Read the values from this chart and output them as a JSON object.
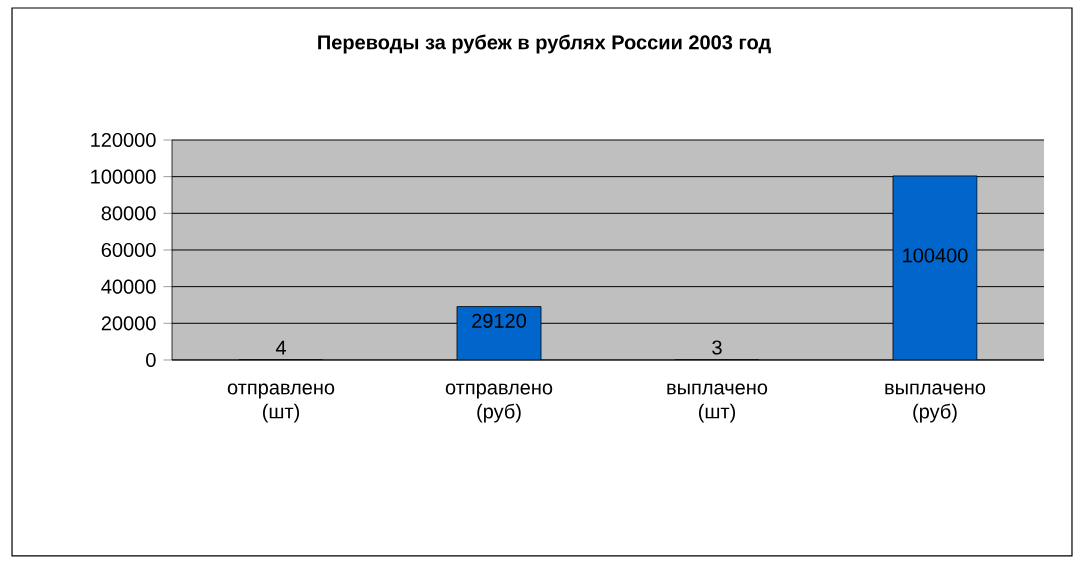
{
  "chart_data": {
    "type": "bar",
    "title": "Переводы за рубеж в рублях России 2003 год",
    "categories": [
      "отправлено (шт)",
      "отправлено (руб)",
      "выплачено (шт)",
      "выплачено (руб)"
    ],
    "values": [
      4,
      29120,
      3,
      100400
    ],
    "color": "#0066cc",
    "ylim": [
      0,
      120000
    ],
    "yticks": [
      0,
      20000,
      40000,
      60000,
      80000,
      100000,
      120000
    ],
    "grid": "y",
    "data_labels": true
  }
}
